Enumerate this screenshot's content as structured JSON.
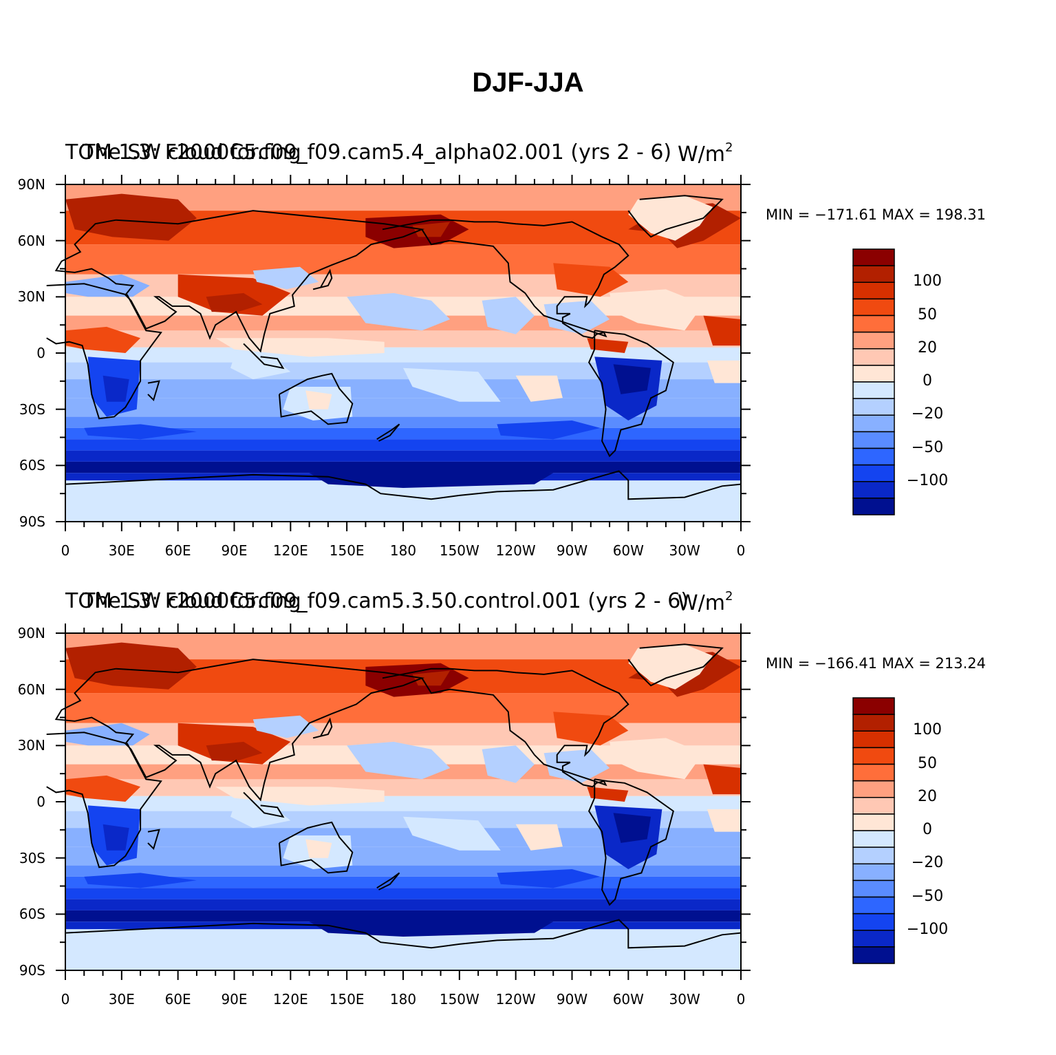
{
  "title": "DJF-JJA",
  "lat_labels": [
    "90N",
    "60N",
    "30N",
    "0",
    "30S",
    "60S",
    "90S"
  ],
  "lon_labels": [
    "0",
    "30E",
    "60E",
    "90E",
    "120E",
    "150E",
    "180",
    "150W",
    "120W",
    "90W",
    "60W",
    "30W",
    "0"
  ],
  "colorbar": {
    "colors": [
      "#8b0000",
      "#b22000",
      "#d73000",
      "#f04a10",
      "#ff6e3a",
      "#ffa080",
      "#ffc8b4",
      "#ffe6d6",
      "#d4e8ff",
      "#b4d0ff",
      "#88b0ff",
      "#5a8cff",
      "#2e66ff",
      "#1444f0",
      "#0a28c8",
      "#001090"
    ],
    "labels": [
      "100",
      "50",
      "20",
      "0",
      "−20",
      "−50",
      "−100"
    ]
  },
  "panels": [
    {
      "title_left": "TOM 1.3: F2000C5.f09_f09.cam5.4_alpha02.001 (yrs 2 - 6)",
      "title_center": "The SW cloud forcing",
      "title_right": "W/m",
      "title_right_sup": "2",
      "minmax": "MIN = −171.61  MAX = 198.31"
    },
    {
      "title_left": "TOM 1.3: F2000C5.f09_f09.cam5.3.50.control.001 (yrs 2 - 6)",
      "title_center": "The SW cloud forcing",
      "title_right": "W/m",
      "title_right_sup": "2",
      "minmax": "MIN = −166.41  MAX = 213.24"
    }
  ]
}
